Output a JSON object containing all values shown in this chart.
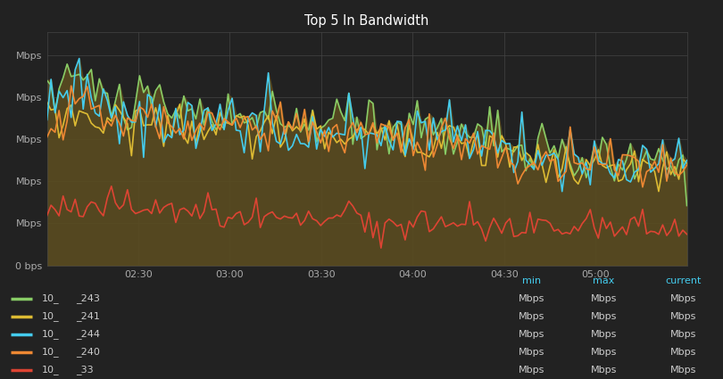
{
  "title": "Top 5 In Bandwidth",
  "background_color": "#222222",
  "plot_bg_color": "#222222",
  "fill_color": "#5a4c20",
  "grid_color": "#444444",
  "text_color": "#cccccc",
  "title_color": "#ffffff",
  "tick_color": "#aaaaaa",
  "series": [
    {
      "label_left": "10_",
      "label_right": "_243",
      "color": "#88cc66",
      "lw": 1.2
    },
    {
      "label_left": "10_",
      "label_right": "_241",
      "color": "#ddbb33",
      "lw": 1.2
    },
    {
      "label_left": "10_",
      "label_right": "_244",
      "color": "#44ccee",
      "lw": 1.2
    },
    {
      "label_left": "10_",
      "label_right": "_240",
      "color": "#ee8833",
      "lw": 1.2
    },
    {
      "label_left": "10_",
      "label_right": "_33",
      "color": "#dd4433",
      "lw": 1.2
    }
  ],
  "x_ticks": [
    "02:30",
    "03:00",
    "03:30",
    "04:00",
    "04:30",
    "05:00"
  ],
  "legend_headers": [
    "min",
    "max",
    "current"
  ],
  "legend_col_color": "#44ccee",
  "legend_rows": [
    [
      "Mbps",
      "Mbps",
      "Mbps"
    ],
    [
      "Mbps",
      "Mbps",
      "Mbps"
    ],
    [
      "Mbps",
      "Mbps",
      "Mbps"
    ],
    [
      "Mbps",
      "Mbps",
      "Mbps"
    ],
    [
      "Mbps",
      "Mbps",
      "Mbps"
    ]
  ]
}
